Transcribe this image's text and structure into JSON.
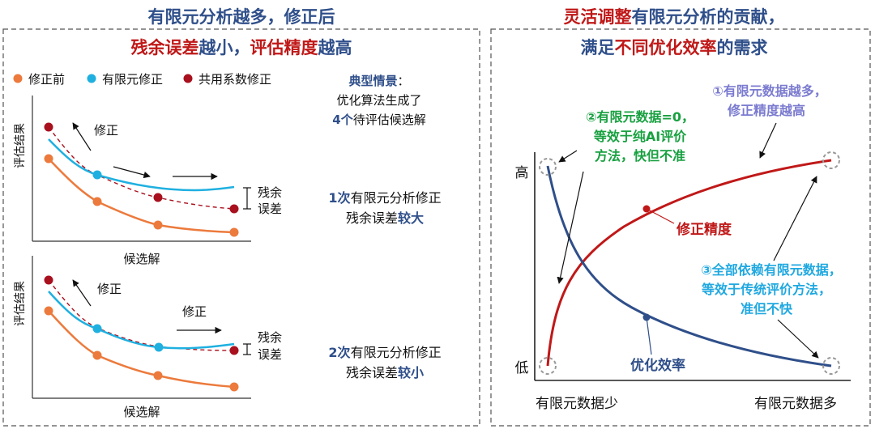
{
  "colors": {
    "blue_dark": "#2f4f8a",
    "red_dark": "#c01818",
    "orange": "#ec7a3c",
    "cyan": "#1fb0e0",
    "dark_red": "#a8101e",
    "green": "#18a040",
    "purple": "#7b7bd0",
    "light_blue": "#1fa8e0",
    "panel_border": "#555555"
  },
  "left_panel": {
    "title_line1": "有限元分析越多，修正后",
    "title_line2_red1": "残余误差",
    "title_line2_mid": "越小，",
    "title_line2_red2": "评估精度",
    "title_line2_end": "越高",
    "legend": [
      {
        "label": "修正前",
        "color": "#ec7a3c"
      },
      {
        "label": "有限元修正",
        "color": "#1fb0e0"
      },
      {
        "label": "共用系数修正",
        "color": "#a8101e"
      }
    ],
    "scenario": {
      "title": "典型情景",
      "colon": "：",
      "line2": "优化算法生成了",
      "line3_bold": "4个",
      "line3_rest": "待评估候选解"
    },
    "chart1": {
      "ylabel": "评估结果",
      "xlabel": "候选解",
      "arrow_label": "修正",
      "residual_label_1": "残余",
      "residual_label_2": "误差",
      "caption_bold": "1次",
      "caption_rest": "有限元分析修正",
      "caption_line2": "残余误差",
      "caption_line2_bold": "较大"
    },
    "chart2": {
      "ylabel": "评估结果",
      "xlabel": "候选解",
      "arrow_label1": "修正",
      "arrow_label2": "修正",
      "residual_label_1": "残余",
      "residual_label_2": "误差",
      "caption_bold": "2次",
      "caption_rest": "有限元分析修正",
      "caption_line2": "残余误差",
      "caption_line2_bold": "较小"
    }
  },
  "right_panel": {
    "title_line1_red": "灵活调整",
    "title_line1_rest": "有限元分析的贡献，",
    "title_line2_a": "满足",
    "title_line2_red": "不同优化效率",
    "title_line2_b": "的需求",
    "y_high": "高",
    "y_low": "低",
    "x_left": "有限元数据少",
    "x_right": "有限元数据多",
    "curve_precision": "修正精度",
    "curve_efficiency": "优化效率",
    "note1_line1": "①有限元数据越多，",
    "note1_line2": "修正精度越高",
    "note2_line1": "②有限元数据=0，",
    "note2_line2": "等效于纯AI评价",
    "note2_line3": "方法，快但不准",
    "note3_line1": "③全部依赖有限元数据，",
    "note3_line2": "等效于传统评价方法，",
    "note3_line3": "准但不快"
  }
}
